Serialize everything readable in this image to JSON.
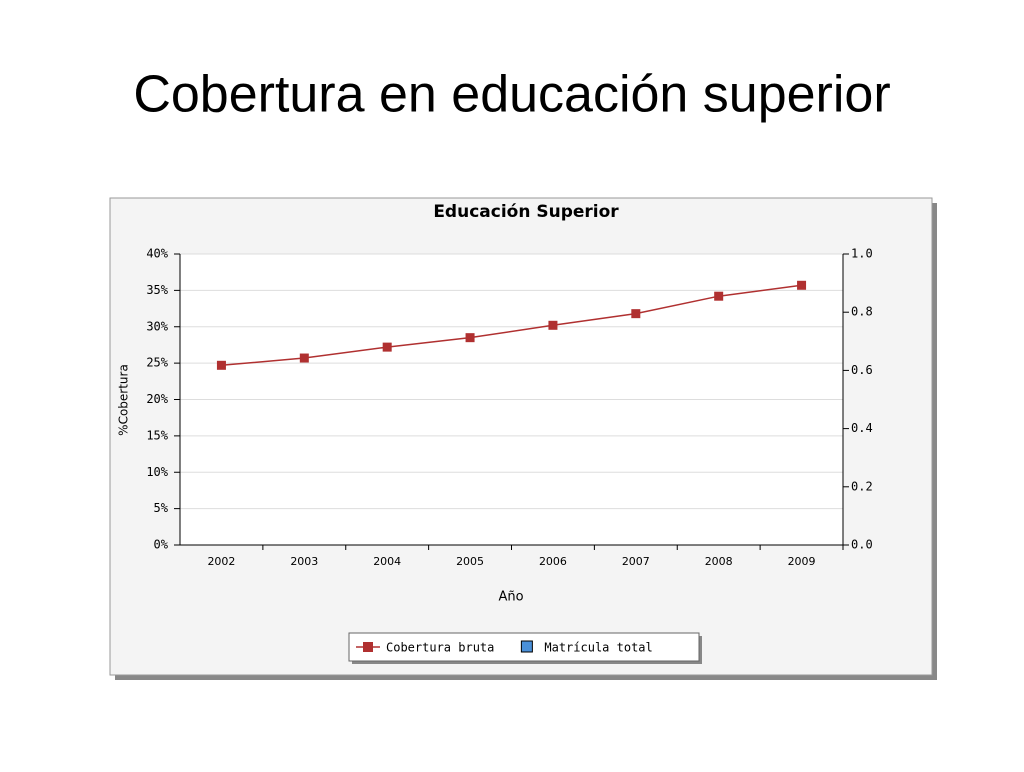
{
  "slide_title": "Cobertura en educación superior",
  "chart_data": {
    "type": "line",
    "title": "Educación Superior",
    "x_label": "Año",
    "y_label": "%Cobertura",
    "categories": [
      "2002",
      "2003",
      "2004",
      "2005",
      "2006",
      "2007",
      "2008",
      "2009"
    ],
    "series": [
      {
        "name": "Cobertura bruta",
        "color": "#b03030",
        "values": [
          24.7,
          25.7,
          27.2,
          28.5,
          30.2,
          31.8,
          34.2,
          35.7
        ]
      },
      {
        "name": "Matrícula total",
        "color": "#4a90d9",
        "axis": "y2",
        "values": [
          null,
          null,
          null,
          null,
          null,
          null,
          null,
          null
        ]
      }
    ],
    "ylim": [
      0,
      40
    ],
    "yticks": [
      {
        "value": 0,
        "label": "0%"
      },
      {
        "value": 5,
        "label": "5%"
      },
      {
        "value": 10,
        "label": "10%"
      },
      {
        "value": 15,
        "label": "15%"
      },
      {
        "value": 20,
        "label": "20%"
      },
      {
        "value": 25,
        "label": "25%"
      },
      {
        "value": 30,
        "label": "30%"
      },
      {
        "value": 35,
        "label": "35%"
      },
      {
        "value": 40,
        "label": "40%"
      }
    ],
    "y2lim": [
      0,
      1
    ],
    "y2ticks": [
      {
        "value": 0,
        "label": "0.0"
      },
      0.2,
      0.4,
      0.6,
      0.8,
      {
        "value": 1,
        "label": "1.0"
      }
    ],
    "grid": true,
    "legend": "bottom"
  }
}
